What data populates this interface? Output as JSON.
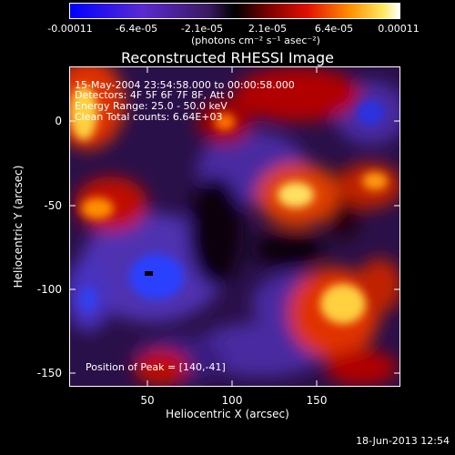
{
  "colorbar": {
    "ticks": [
      "-0.00011",
      "-6.4e-05",
      "-2.1e-05",
      "2.1e-05",
      "6.4e-05",
      "0.00011"
    ],
    "units": "(photons cm⁻² s⁻¹ asec⁻²)"
  },
  "title": "Reconstructed RHESSI Image",
  "info": {
    "time": "15-May-2004 23:54:58.000 to 00:00:58.000",
    "detectors": "Detectors: 4F 5F 6F 7F 8F, Att 0",
    "energy": "Energy Range: 25.0 - 50.0 keV",
    "clean": "Clean     Total counts: 6.64E+03"
  },
  "peak": "Position of Peak = [140,-41]",
  "axes": {
    "xlabel": "Heliocentric X (arcsec)",
    "ylabel": "Heliocentric Y (arcsec)",
    "xticks": [
      "50",
      "100",
      "150"
    ],
    "yticks": [
      "0",
      "-50",
      "-100",
      "-150"
    ]
  },
  "footer_date": "18-Jun-2013 12:54"
}
